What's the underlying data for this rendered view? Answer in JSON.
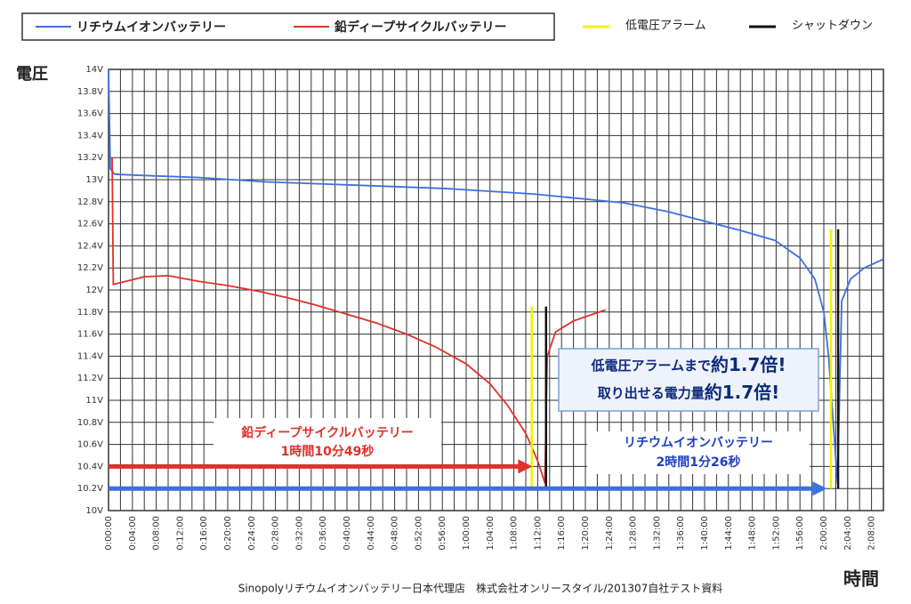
{
  "chart_data": {
    "type": "line",
    "y_title": "電圧",
    "x_title": "時間",
    "footer": "Sinopolyリチウムイオンバッテリー日本代理店　株式会社オンリースタイル/201307自社テスト資料",
    "xlim": [
      0,
      130
    ],
    "ylim": [
      10,
      14
    ],
    "xticks": [
      {
        "value": 0,
        "label": "0:00:00"
      },
      {
        "value": 4,
        "label": "0:04:00"
      },
      {
        "value": 8,
        "label": "0:08:00"
      },
      {
        "value": 12,
        "label": "0:12:00"
      },
      {
        "value": 16,
        "label": "0:16:00"
      },
      {
        "value": 20,
        "label": "0:20:00"
      },
      {
        "value": 24,
        "label": "0:24:00"
      },
      {
        "value": 28,
        "label": "0:28:00"
      },
      {
        "value": 32,
        "label": "0:32:00"
      },
      {
        "value": 36,
        "label": "0:36:00"
      },
      {
        "value": 40,
        "label": "0:40:00"
      },
      {
        "value": 44,
        "label": "0:44:00"
      },
      {
        "value": 48,
        "label": "0:48:00"
      },
      {
        "value": 52,
        "label": "0:52:00"
      },
      {
        "value": 56,
        "label": "0:56:00"
      },
      {
        "value": 60,
        "label": "1:00:00"
      },
      {
        "value": 64,
        "label": "1:04:00"
      },
      {
        "value": 68,
        "label": "1:08:00"
      },
      {
        "value": 72,
        "label": "1:12:00"
      },
      {
        "value": 76,
        "label": "1:16:00"
      },
      {
        "value": 80,
        "label": "1:20:00"
      },
      {
        "value": 84,
        "label": "1:24:00"
      },
      {
        "value": 88,
        "label": "1:28:00"
      },
      {
        "value": 92,
        "label": "1:32:00"
      },
      {
        "value": 96,
        "label": "1:36:00"
      },
      {
        "value": 100,
        "label": "1:40:00"
      },
      {
        "value": 104,
        "label": "1:44:00"
      },
      {
        "value": 108,
        "label": "1:48:00"
      },
      {
        "value": 112,
        "label": "1:52:00"
      },
      {
        "value": 116,
        "label": "1:56:00"
      },
      {
        "value": 120,
        "label": "2:00:00"
      },
      {
        "value": 124,
        "label": "2:04:00"
      },
      {
        "value": 128,
        "label": "2:08:00"
      }
    ],
    "xminor": [
      2,
      6,
      10,
      14,
      18,
      22,
      26,
      30,
      34,
      38,
      42,
      46,
      50,
      54,
      58,
      62,
      66,
      70,
      74,
      78,
      82,
      86,
      90,
      94,
      98,
      102,
      106,
      110,
      114,
      118,
      122,
      126,
      130
    ],
    "yticks": [
      {
        "value": 10,
        "label": "10V"
      },
      {
        "value": 10.2,
        "label": "10.2V"
      },
      {
        "value": 10.4,
        "label": "10.4V"
      },
      {
        "value": 10.6,
        "label": "10.6V"
      },
      {
        "value": 10.8,
        "label": "10.8V"
      },
      {
        "value": 11,
        "label": "11V"
      },
      {
        "value": 11.2,
        "label": "11.2V"
      },
      {
        "value": 11.4,
        "label": "11.4V"
      },
      {
        "value": 11.6,
        "label": "11.6V"
      },
      {
        "value": 11.8,
        "label": "11.8V"
      },
      {
        "value": 12,
        "label": "12V"
      },
      {
        "value": 12.2,
        "label": "12.2V"
      },
      {
        "value": 12.4,
        "label": "12.4V"
      },
      {
        "value": 12.6,
        "label": "12.6V"
      },
      {
        "value": 12.8,
        "label": "12.8V"
      },
      {
        "value": 13,
        "label": "13V"
      },
      {
        "value": 13.2,
        "label": "13.2V"
      },
      {
        "value": 13.4,
        "label": "13.4V"
      },
      {
        "value": 13.6,
        "label": "13.6V"
      },
      {
        "value": 13.8,
        "label": "13.8V"
      },
      {
        "value": 14,
        "label": "14V"
      }
    ],
    "grid": true,
    "series": [
      {
        "name": "リチウムイオンバッテリー",
        "color": "#3d6fe0",
        "x": [
          0,
          0.3,
          1,
          5,
          15,
          26.6,
          41.6,
          56.5,
          71.4,
          86.4,
          93.9,
          101,
          106,
          111.8,
          116,
          118.5,
          120,
          120.8,
          122.3,
          123,
          124.5,
          126.8,
          130
        ],
        "values": [
          14.0,
          13.1,
          13.05,
          13.04,
          13.02,
          12.98,
          12.95,
          12.92,
          12.87,
          12.79,
          12.71,
          12.61,
          12.54,
          12.45,
          12.29,
          12.1,
          11.8,
          11.4,
          10.25,
          11.9,
          12.1,
          12.2,
          12.28
        ]
      },
      {
        "name": "鉛ディープサイクルバッテリー",
        "color": "#e0302a",
        "x": [
          0.6,
          0.8,
          3,
          6,
          10,
          15,
          20,
          25,
          30,
          35,
          40,
          45,
          50,
          55,
          60,
          64,
          67,
          70,
          72,
          73.2,
          73.6,
          75,
          78,
          83.4
        ],
        "values": [
          13.2,
          12.05,
          12.08,
          12.12,
          12.13,
          12.08,
          12.04,
          11.99,
          11.93,
          11.86,
          11.78,
          11.7,
          11.6,
          11.48,
          11.33,
          11.15,
          10.95,
          10.7,
          10.45,
          10.25,
          11.4,
          11.62,
          11.72,
          11.82
        ]
      }
    ],
    "markers": [
      {
        "name": "低電圧アラーム",
        "color": "#f2f200",
        "x": [
          71.0,
          121.2
        ],
        "spans": [
          [
            10.2,
            11.85
          ],
          [
            10.2,
            12.55
          ]
        ]
      },
      {
        "name": "シャットダウン",
        "color": "#111111",
        "x": [
          73.4,
          122.4
        ],
        "spans": [
          [
            10.2,
            11.85
          ],
          [
            10.2,
            12.55
          ]
        ]
      }
    ],
    "arrows": [
      {
        "color": "#e0302a",
        "y": 10.4,
        "x": [
          0,
          71.1
        ]
      },
      {
        "color": "#3d6fe0",
        "y": 10.2,
        "x": [
          0,
          120.5
        ]
      }
    ],
    "annotations": [
      {
        "lines": [
          "鉛ディープサイクルバッテリー",
          "1時間10分49秒"
        ],
        "color": "#e0302a"
      },
      {
        "lines": [
          "リチウムイオンバッテリー",
          "2時間1分26秒"
        ],
        "color": "#1f3fbf"
      }
    ],
    "callout": [
      [
        "低電圧アラームまで",
        "約1.7倍!"
      ],
      [
        "取り出せる電力量",
        "約1.7倍!"
      ]
    ]
  }
}
